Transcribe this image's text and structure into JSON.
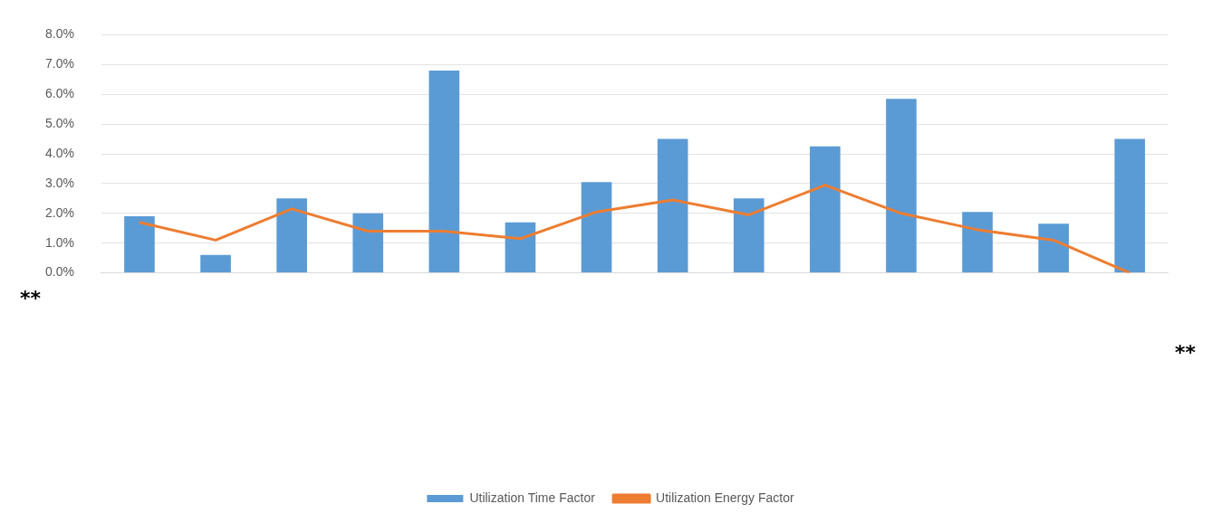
{
  "chart_data": {
    "type": "bar",
    "categories": [
      null,
      null,
      null,
      null,
      null,
      null,
      null,
      null,
      null,
      null,
      null,
      null,
      null,
      null
    ],
    "series": [
      {
        "name": "Utilization Time Factor",
        "color": "#5b9bd5",
        "values": [
          1.9,
          0.6,
          2.5,
          2.0,
          6.8,
          1.7,
          3.05,
          4.5,
          2.5,
          4.25,
          5.85,
          2.05,
          1.65,
          4.5
        ]
      },
      {
        "name": "Utilization Energy Factor",
        "type": "line",
        "color": "#ed7d31",
        "values": [
          1.7,
          1.1,
          2.15,
          1.4,
          1.4,
          1.15,
          2.05,
          2.45,
          1.95,
          2.95,
          2.0,
          1.45,
          1.1,
          0.0
        ]
      }
    ],
    "ylim": [
      0,
      8
    ],
    "yticks": [
      {
        "value": 0,
        "label": "0.0%"
      },
      {
        "value": 1,
        "label": "1.0%"
      },
      {
        "value": 2,
        "label": "2.0%"
      },
      {
        "value": 3,
        "label": "3.0%"
      },
      {
        "value": 4,
        "label": "4.0%"
      },
      {
        "value": 5,
        "label": "5.0%"
      },
      {
        "value": 6,
        "label": "6.0%"
      },
      {
        "value": 7,
        "label": "7.0%"
      },
      {
        "value": 8,
        "label": "8.0%"
      }
    ],
    "grid": "y",
    "legend": "bottom",
    "marker": "none",
    "line_style": "solid",
    "annotations": [
      "**",
      "**"
    ]
  }
}
